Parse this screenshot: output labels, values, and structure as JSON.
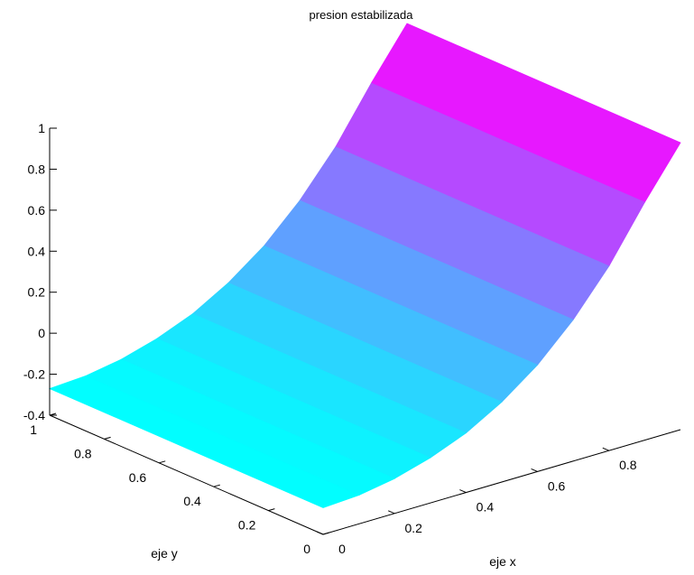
{
  "chart_data": {
    "type": "surface",
    "title": "presion estabilizada",
    "xlabel": "eje x",
    "ylabel": "eje y",
    "zlabel": "",
    "xlim": [
      0,
      1
    ],
    "ylim": [
      0,
      1
    ],
    "zlim": [
      -0.4,
      1
    ],
    "x_ticks": [
      "0",
      "0.2",
      "0.4",
      "0.6",
      "0.8"
    ],
    "y_ticks": [
      "0",
      "0.2",
      "0.4",
      "0.6",
      "0.8",
      "1"
    ],
    "z_ticks": [
      "-0.4",
      "-0.2",
      "0",
      "0.2",
      "0.4",
      "0.6",
      "0.8",
      "1"
    ],
    "colormap": "cool",
    "colormap_colors": [
      "#00ffff",
      "#ff00ff"
    ],
    "grid": false,
    "surface_rows": [
      {
        "x": 0,
        "z": -0.27
      },
      {
        "x": 0.1,
        "z": -0.26
      },
      {
        "x": 0.2,
        "z": -0.23
      },
      {
        "x": 0.3,
        "z": -0.18
      },
      {
        "x": 0.4,
        "z": -0.11
      },
      {
        "x": 0.5,
        "z": -0.01
      },
      {
        "x": 0.6,
        "z": 0.12
      },
      {
        "x": 0.7,
        "z": 0.29
      },
      {
        "x": 0.8,
        "z": 0.5
      },
      {
        "x": 0.9,
        "z": 0.76
      },
      {
        "x": 1,
        "z": 1.0
      }
    ]
  }
}
